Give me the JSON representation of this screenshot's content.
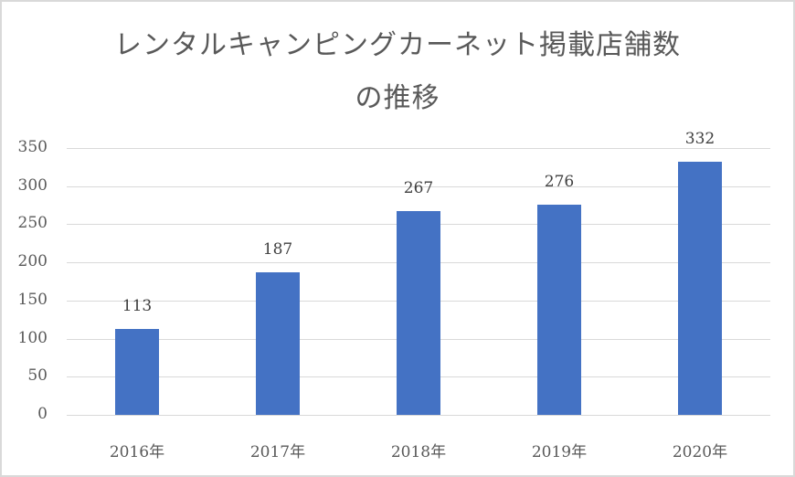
{
  "chart_data": {
    "type": "bar",
    "title": "レンタルキャンピングカーネット掲載店舗数の推移",
    "title_lines": [
      "レンタルキャンピングカーネット掲載店舗数",
      "の推移"
    ],
    "categories": [
      "2016年",
      "2017年",
      "2018年",
      "2019年",
      "2020年"
    ],
    "values": [
      113,
      187,
      267,
      276,
      332
    ],
    "xlabel": "",
    "ylabel": "",
    "ylim": [
      0,
      350
    ],
    "yticks": [
      "0",
      "50",
      "100",
      "150",
      "200",
      "250",
      "300",
      "350"
    ],
    "grid": true,
    "legend": "none",
    "data_labels": true,
    "bar_color": "#4472c4"
  }
}
